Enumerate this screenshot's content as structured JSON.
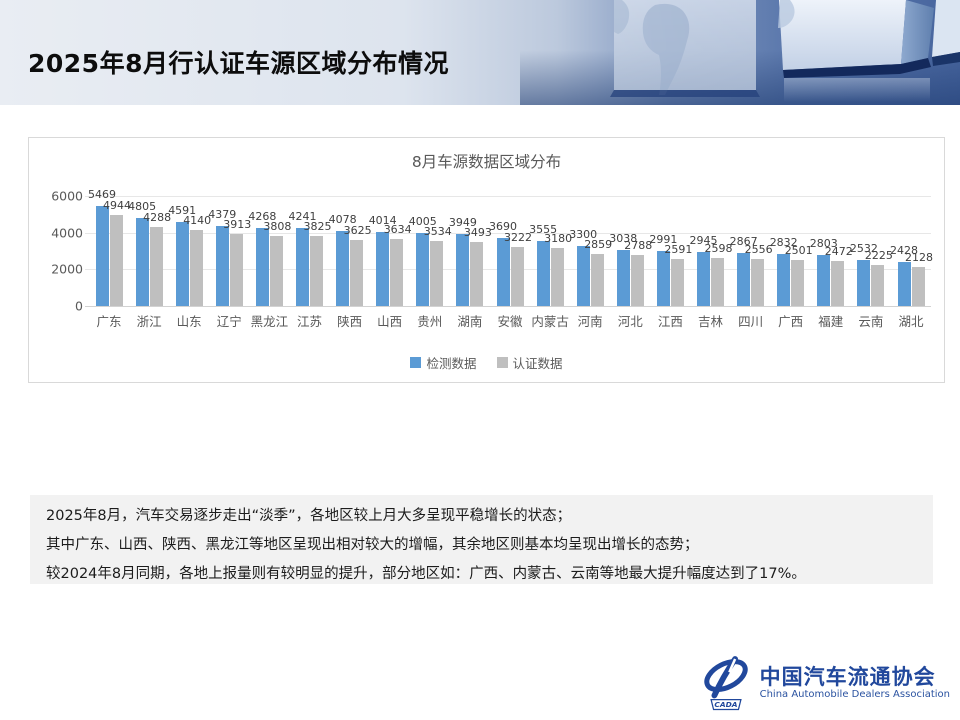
{
  "slide": {
    "title": "2025年8月行认证车源区域分布情况"
  },
  "chart_data": {
    "type": "bar",
    "title": "8月车源数据区域分布",
    "categories": [
      "广东",
      "浙江",
      "山东",
      "辽宁",
      "黑龙江",
      "江苏",
      "陕西",
      "山西",
      "贵州",
      "湖南",
      "安徽",
      "内蒙古",
      "河南",
      "河北",
      "江西",
      "吉林",
      "四川",
      "广西",
      "福建",
      "云南",
      "湖北"
    ],
    "series": [
      {
        "name": "检测数据",
        "color": "#5B9BD5",
        "values": [
          5469,
          4805,
          4591,
          4379,
          4268,
          4241,
          4078,
          4014,
          4005,
          3949,
          3690,
          3555,
          3300,
          3038,
          2991,
          2945,
          2867,
          2832,
          2803,
          2532,
          2428
        ]
      },
      {
        "name": "认证数据",
        "color": "#BFBFBF",
        "values": [
          4944,
          4288,
          4140,
          3913,
          3808,
          3825,
          3625,
          3634,
          3534,
          3493,
          3222,
          3180,
          2859,
          2788,
          2591,
          2598,
          2556,
          2501,
          2472,
          2225,
          2128
        ]
      }
    ],
    "ylim": [
      0,
      6000
    ],
    "yticks": [
      0,
      2000,
      4000,
      6000
    ],
    "grid": true,
    "legend_position": "bottom",
    "data_labels": true
  },
  "summary": {
    "lines": [
      "2025年8月，汽车交易逐步走出“淡季”，各地区较上月大多呈现平稳增长的状态；",
      "其中广东、山西、陕西、黑龙江等地区呈现出相对较大的增幅，其余地区则基本均呈现出增长的态势；",
      "较2024年8月同期，各地上报量则有较明显的提升，部分地区如：广西、内蒙古、云南等地最大提升幅度达到了17%。"
    ]
  },
  "footer": {
    "org_cn": "中国汽车流通协会",
    "org_en": "China Automobile Dealers Association",
    "logo_acronym": "CADA",
    "brand_color": "#21489C"
  }
}
